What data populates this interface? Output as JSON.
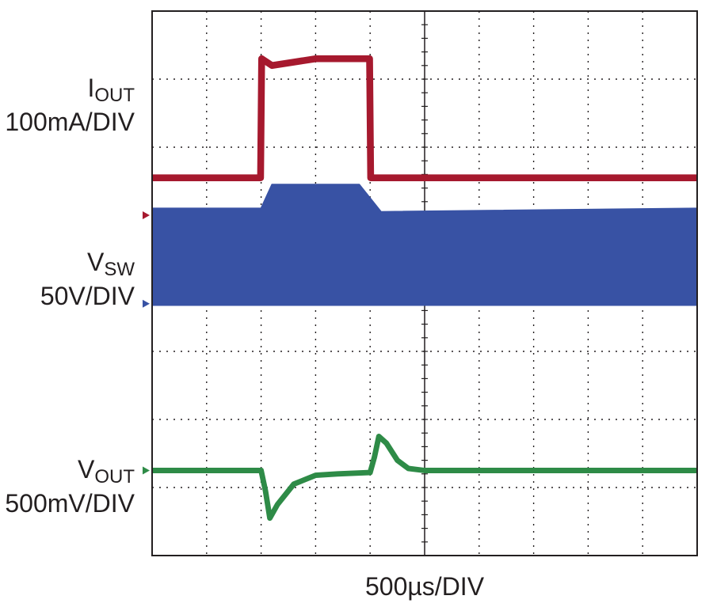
{
  "chart_data": {
    "type": "line",
    "title": "",
    "xlabel": "500µs/DIV",
    "x_unit": "µs",
    "x_per_div": 500,
    "x_divisions": 10,
    "xlim": [
      0,
      5000
    ],
    "grid": true,
    "channels": [
      {
        "name_main": "I",
        "name_sub": "OUT",
        "scale": "100mA/DIV",
        "color": "#a6192e",
        "marker_color": "#a6192e",
        "zero_level_div": 5.0,
        "trace": [
          {
            "t": 0,
            "div": 5.55
          },
          {
            "t": 995,
            "div": 5.55
          },
          {
            "t": 1005,
            "div": 7.3
          },
          {
            "t": 1100,
            "div": 7.2
          },
          {
            "t": 1300,
            "div": 7.25
          },
          {
            "t": 1500,
            "div": 7.3
          },
          {
            "t": 1995,
            "div": 7.3
          },
          {
            "t": 2005,
            "div": 5.55
          },
          {
            "t": 5000,
            "div": 5.55
          }
        ],
        "band_div": 0.1
      },
      {
        "name_main": "V",
        "name_sub": "SW",
        "scale": "50V/DIV",
        "color": "#3852a4",
        "marker_color": "#3852a4",
        "zero_level_div": 3.7,
        "switching_band": [
          {
            "t": 0,
            "high": 5.1
          },
          {
            "t": 1000,
            "high": 5.1
          },
          {
            "t": 1100,
            "high": 5.45
          },
          {
            "t": 1900,
            "high": 5.45
          },
          {
            "t": 2000,
            "high": 5.25
          },
          {
            "t": 2100,
            "high": 5.05
          },
          {
            "t": 5000,
            "high": 5.1
          }
        ],
        "low_div": 3.68
      },
      {
        "name_main": "V",
        "name_sub": "OUT",
        "scale": "500mV/DIV",
        "color": "#2e8b47",
        "marker_color": "#2e8b47",
        "zero_level_div": 1.25,
        "trace": [
          {
            "t": 0,
            "div": 1.25
          },
          {
            "t": 1000,
            "div": 1.25
          },
          {
            "t": 1040,
            "div": 0.95
          },
          {
            "t": 1080,
            "div": 0.55
          },
          {
            "t": 1150,
            "div": 0.75
          },
          {
            "t": 1300,
            "div": 1.05
          },
          {
            "t": 1500,
            "div": 1.18
          },
          {
            "t": 1700,
            "div": 1.2
          },
          {
            "t": 2000,
            "div": 1.22
          },
          {
            "t": 2040,
            "div": 1.45
          },
          {
            "t": 2080,
            "div": 1.75
          },
          {
            "t": 2150,
            "div": 1.65
          },
          {
            "t": 2250,
            "div": 1.4
          },
          {
            "t": 2350,
            "div": 1.28
          },
          {
            "t": 2500,
            "div": 1.25
          },
          {
            "t": 5000,
            "div": 1.25
          }
        ],
        "band_div": 0.08
      }
    ]
  }
}
